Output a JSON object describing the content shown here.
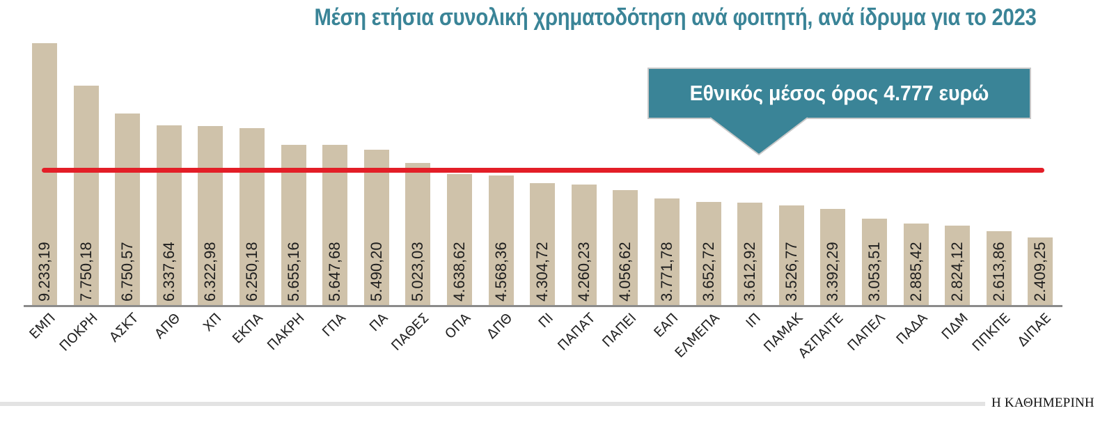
{
  "title": "Μέση ετήσια συνολική χρηματοδότηση ανά φοιτητή, ανά ίδρυμα για το 2023",
  "callout": {
    "text": "Εθνικός μέσος όρος 4.777 ευρώ"
  },
  "brand": "Η ΚΑΘΗΜΕΡΙΝΗ",
  "colors": {
    "title": "#3a8497",
    "bar": "#cfc2aa",
    "average_line": "#e31e27",
    "callout_bg": "#3a8497",
    "axis": "#8b8b8b"
  },
  "bars": [
    {
      "category": "ΕΜΠ",
      "label": "9.233,19"
    },
    {
      "category": "ΠΟΚΡΗ",
      "label": "7.750,18"
    },
    {
      "category": "ΑΣΚΤ",
      "label": "6.750,57"
    },
    {
      "category": "ΑΠΘ",
      "label": "6.337,64"
    },
    {
      "category": "ΧΠ",
      "label": "6.322,98"
    },
    {
      "category": "ΕΚΠΑ",
      "label": "6.250,18"
    },
    {
      "category": "ΠΑΚΡΗ",
      "label": "5.655,16"
    },
    {
      "category": "ΓΠΑ",
      "label": "5.647,68"
    },
    {
      "category": "ΠΑ",
      "label": "5.490,20"
    },
    {
      "category": "ΠΑΘΕΣ",
      "label": "5.023,03"
    },
    {
      "category": "ΟΠΑ",
      "label": "4.638,62"
    },
    {
      "category": "ΔΠΘ",
      "label": "4.568,36"
    },
    {
      "category": "ΠΙ",
      "label": "4.304,72"
    },
    {
      "category": "ΠΑΠΑΤ",
      "label": "4.260,23"
    },
    {
      "category": "ΠΑΠΕΙ",
      "label": "4.056,62"
    },
    {
      "category": "ΕΑΠ",
      "label": "3.771,78"
    },
    {
      "category": "ΕΛΜΕΠΑ",
      "label": "3.652,72"
    },
    {
      "category": "ΙΠ",
      "label": "3.612,92"
    },
    {
      "category": "ΠΑΜΑΚ",
      "label": "3.526,77"
    },
    {
      "category": "ΑΣΠΑΙΤΕ",
      "label": "3.392,29"
    },
    {
      "category": "ΠΑΠΕΛ",
      "label": "3.053,51"
    },
    {
      "category": "ΠΑΔΑ",
      "label": "2.885,42"
    },
    {
      "category": "ΠΔΜ",
      "label": "2.824,12"
    },
    {
      "category": "ΠΠΚΠΕ",
      "label": "2.613,86"
    },
    {
      "category": "ΔΙΠΑΕ",
      "label": "2.409,25"
    }
  ],
  "chart_data": {
    "type": "bar",
    "title": "Μέση ετήσια συνολική χρηματοδότηση ανά φοιτητή, ανά ίδρυμα για το 2023",
    "xlabel": "",
    "ylabel": "",
    "categories": [
      "ΕΜΠ",
      "ΠΟΚΡΗ",
      "ΑΣΚΤ",
      "ΑΠΘ",
      "ΧΠ",
      "ΕΚΠΑ",
      "ΠΑΚΡΗ",
      "ΓΠΑ",
      "ΠΑ",
      "ΠΑΘΕΣ",
      "ΟΠΑ",
      "ΔΠΘ",
      "ΠΙ",
      "ΠΑΠΑΤ",
      "ΠΑΠΕΙ",
      "ΕΑΠ",
      "ΕΛΜΕΠΑ",
      "ΙΠ",
      "ΠΑΜΑΚ",
      "ΑΣΠΑΙΤΕ",
      "ΠΑΠΕΛ",
      "ΠΑΔΑ",
      "ΠΔΜ",
      "ΠΠΚΠΕ",
      "ΔΙΠΑΕ"
    ],
    "values": [
      9233.19,
      7750.18,
      6750.57,
      6337.64,
      6322.98,
      6250.18,
      5655.16,
      5647.68,
      5490.2,
      5023.03,
      4638.62,
      4568.36,
      4304.72,
      4260.23,
      4056.62,
      3771.78,
      3652.72,
      3612.92,
      3526.77,
      3392.29,
      3053.51,
      2885.42,
      2824.12,
      2613.86,
      2409.25
    ],
    "unit": "ευρώ",
    "reference_line": {
      "label": "Εθνικός μέσος όρος 4.777 ευρώ",
      "value": 4777,
      "color": "#e31e27"
    },
    "data_labels": "rotated 90°, inside bars",
    "x_tick_rotation": -45,
    "grid": false,
    "legend": null,
    "ylim": [
      0,
      9233.19
    ]
  }
}
